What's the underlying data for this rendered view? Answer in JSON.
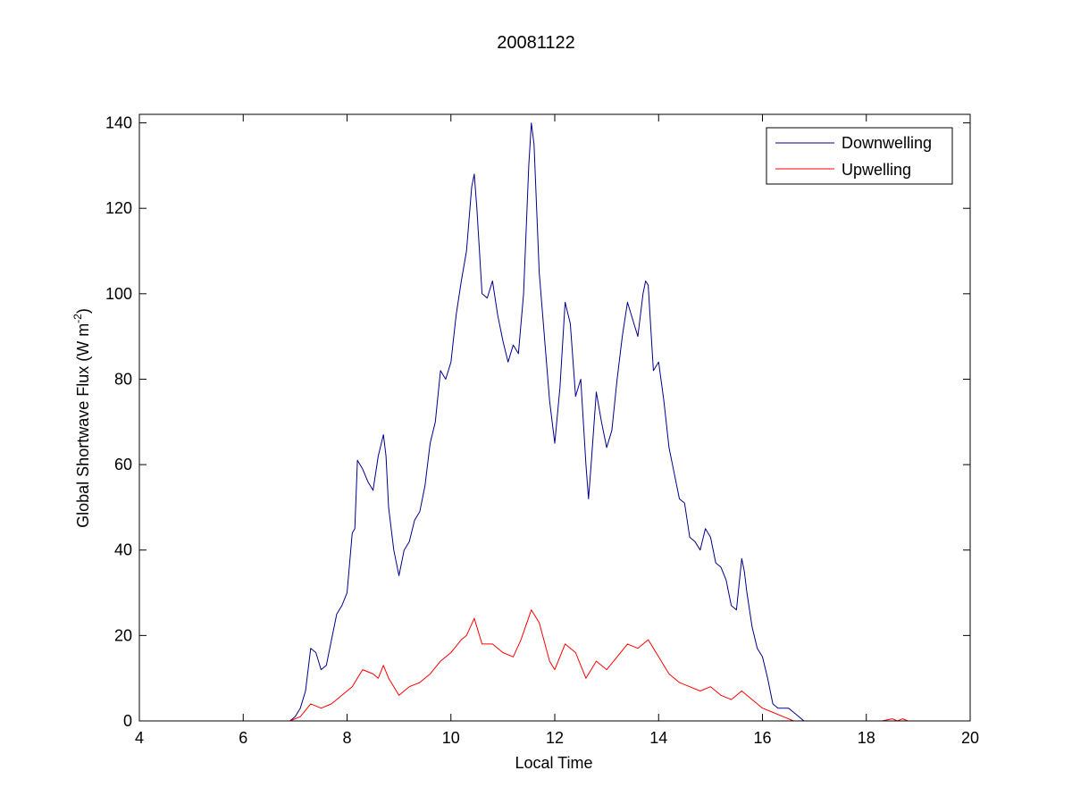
{
  "chart_data": {
    "type": "line",
    "title": "20081122",
    "xlabel": "Local Time",
    "ylabel": "Global Shortwave Flux (W m",
    "ylabel_suffix": ")",
    "ylabel_sup": "-2",
    "xlim": [
      4,
      20
    ],
    "ylim": [
      0,
      142
    ],
    "xticks": [
      4,
      6,
      8,
      10,
      12,
      14,
      16,
      18,
      20
    ],
    "yticks": [
      0,
      20,
      40,
      60,
      80,
      100,
      120,
      140
    ],
    "grid": false,
    "legend_position": "top-right",
    "series": [
      {
        "name": "Downwelling",
        "color": "#00008b",
        "x": [
          6.9,
          7.0,
          7.1,
          7.2,
          7.3,
          7.4,
          7.5,
          7.6,
          7.7,
          7.8,
          7.9,
          8.0,
          8.1,
          8.15,
          8.2,
          8.3,
          8.4,
          8.5,
          8.6,
          8.7,
          8.75,
          8.8,
          8.9,
          9.0,
          9.1,
          9.2,
          9.3,
          9.4,
          9.5,
          9.6,
          9.7,
          9.8,
          9.9,
          10.0,
          10.1,
          10.2,
          10.3,
          10.4,
          10.45,
          10.5,
          10.6,
          10.7,
          10.8,
          10.9,
          11.0,
          11.1,
          11.2,
          11.3,
          11.4,
          11.5,
          11.55,
          11.6,
          11.7,
          11.8,
          11.9,
          12.0,
          12.1,
          12.2,
          12.3,
          12.4,
          12.5,
          12.6,
          12.65,
          12.7,
          12.8,
          12.9,
          13.0,
          13.1,
          13.2,
          13.3,
          13.4,
          13.5,
          13.6,
          13.7,
          13.75,
          13.8,
          13.9,
          14.0,
          14.1,
          14.2,
          14.3,
          14.4,
          14.5,
          14.6,
          14.7,
          14.8,
          14.9,
          15.0,
          15.1,
          15.2,
          15.3,
          15.4,
          15.5,
          15.6,
          15.65,
          15.7,
          15.8,
          15.9,
          16.0,
          16.1,
          16.2,
          16.3,
          16.4,
          16.5,
          16.6,
          16.7,
          16.8,
          16.85
        ],
        "y": [
          0,
          1,
          3,
          7,
          17,
          16,
          12,
          13,
          19,
          25,
          27,
          30,
          44,
          45,
          61,
          59,
          56,
          54,
          62,
          67,
          62,
          50,
          40,
          34,
          40,
          42,
          47,
          49,
          55,
          65,
          70,
          82,
          80,
          84,
          95,
          103,
          110,
          125,
          128,
          120,
          100,
          99,
          103,
          95,
          89,
          84,
          88,
          86,
          100,
          130,
          140,
          135,
          105,
          90,
          75,
          65,
          78,
          98,
          93,
          76,
          80,
          60,
          52,
          60,
          77,
          70,
          64,
          68,
          80,
          90,
          98,
          94,
          90,
          100,
          103,
          102,
          82,
          84,
          75,
          64,
          58,
          52,
          51,
          43,
          42,
          40,
          45,
          43,
          37,
          36,
          33,
          27,
          26,
          38,
          35,
          30,
          22,
          17,
          15,
          10,
          4,
          3,
          3,
          3,
          2,
          1,
          0,
          0
        ]
      },
      {
        "name": "Upwelling",
        "color": "#ff0000",
        "x": [
          6.9,
          7.1,
          7.3,
          7.5,
          7.7,
          7.9,
          8.1,
          8.3,
          8.5,
          8.6,
          8.7,
          8.8,
          9.0,
          9.2,
          9.4,
          9.6,
          9.8,
          10.0,
          10.2,
          10.3,
          10.45,
          10.6,
          10.8,
          11.0,
          11.2,
          11.35,
          11.55,
          11.7,
          11.9,
          12.0,
          12.2,
          12.4,
          12.6,
          12.8,
          13.0,
          13.2,
          13.4,
          13.6,
          13.8,
          14.0,
          14.2,
          14.4,
          14.6,
          14.8,
          15.0,
          15.2,
          15.4,
          15.6,
          15.8,
          16.0,
          16.2,
          16.4,
          16.6,
          16.85,
          18.3,
          18.5,
          18.6,
          18.7,
          18.8
        ],
        "y": [
          0,
          1,
          4,
          3,
          4,
          6,
          8,
          12,
          11,
          10,
          13,
          10,
          6,
          8,
          9,
          11,
          14,
          16,
          19,
          20,
          24,
          18,
          18,
          16,
          15,
          19,
          26,
          23,
          14,
          12,
          18,
          16,
          10,
          14,
          12,
          15,
          18,
          17,
          19,
          15,
          11,
          9,
          8,
          7,
          8,
          6,
          5,
          7,
          5,
          3,
          2,
          1,
          0,
          0,
          0,
          0.5,
          0,
          0.5,
          0
        ]
      }
    ]
  }
}
